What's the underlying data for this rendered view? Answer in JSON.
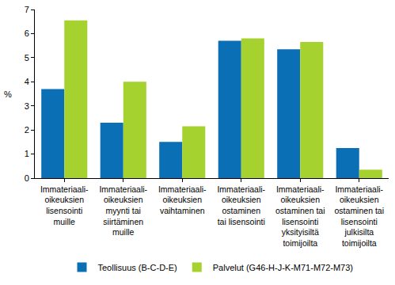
{
  "chart_data": {
    "type": "bar",
    "ylabel": "%",
    "categories": [
      "Immateriaali-\noikeuksien\nlisensointi\nmuille",
      "Immateriaali-\noikeuksien\nmyynti tai\nsiirtäminen\nmuille",
      "Immateriaali-\noikeuksien\nvaihtaminen",
      "Immateriaali-\noikeuksien\nostaminen\ntai lisensointi",
      "Immateriaali-\noikeuksien\nostaminen tai\nlisensointi\nyksityisiltä\ntoimijoilta",
      "Immateriaali-\noikeuksien\nostaminen tai\nlisensointi\njulkisilta\ntoimijoilta"
    ],
    "series": [
      {
        "name": "Teollisuus (B-C-D-E)",
        "color": "#0a6fb5",
        "values": [
          3.7,
          2.3,
          1.5,
          5.7,
          5.35,
          1.25
        ]
      },
      {
        "name": "Palvelut (G46-H-J-K-M71-M72-M73)",
        "color": "#a5d22e",
        "values": [
          6.55,
          4.0,
          2.15,
          5.8,
          5.65,
          0.35
        ]
      }
    ],
    "ylim": [
      0,
      7
    ],
    "yticks": [
      0,
      1,
      2,
      3,
      4,
      5,
      6,
      7
    ],
    "grid": false,
    "legend": "bottom"
  }
}
